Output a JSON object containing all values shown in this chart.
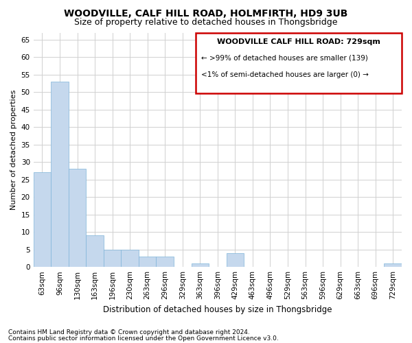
{
  "title": "WOODVILLE, CALF HILL ROAD, HOLMFIRTH, HD9 3UB",
  "subtitle": "Size of property relative to detached houses in Thongsbridge",
  "xlabel": "Distribution of detached houses by size in Thongsbridge",
  "ylabel": "Number of detached properties",
  "categories": [
    "63sqm",
    "96sqm",
    "130sqm",
    "163sqm",
    "196sqm",
    "230sqm",
    "263sqm",
    "296sqm",
    "329sqm",
    "363sqm",
    "396sqm",
    "429sqm",
    "463sqm",
    "496sqm",
    "529sqm",
    "563sqm",
    "596sqm",
    "629sqm",
    "663sqm",
    "696sqm",
    "729sqm"
  ],
  "values": [
    27,
    53,
    28,
    9,
    5,
    5,
    3,
    3,
    0,
    1,
    0,
    4,
    0,
    0,
    0,
    0,
    0,
    0,
    0,
    0,
    1
  ],
  "bar_color": "#c5d8ed",
  "bar_edge_color": "#7fb3d9",
  "ylim": [
    0,
    67
  ],
  "yticks": [
    0,
    5,
    10,
    15,
    20,
    25,
    30,
    35,
    40,
    45,
    50,
    55,
    60,
    65
  ],
  "grid_color": "#d0d0d0",
  "background_color": "#ffffff",
  "legend_text_line1": "WOODVILLE CALF HILL ROAD: 729sqm",
  "legend_text_line2": "← >99% of detached houses are smaller (139)",
  "legend_text_line3": "<1% of semi-detached houses are larger (0) →",
  "legend_box_color": "#cc0000",
  "footnote1": "Contains HM Land Registry data © Crown copyright and database right 2024.",
  "footnote2": "Contains public sector information licensed under the Open Government Licence v3.0.",
  "title_fontsize": 10,
  "subtitle_fontsize": 9,
  "xlabel_fontsize": 8.5,
  "ylabel_fontsize": 8,
  "tick_fontsize": 7.5,
  "legend_fontsize": 8,
  "footnote_fontsize": 6.5
}
